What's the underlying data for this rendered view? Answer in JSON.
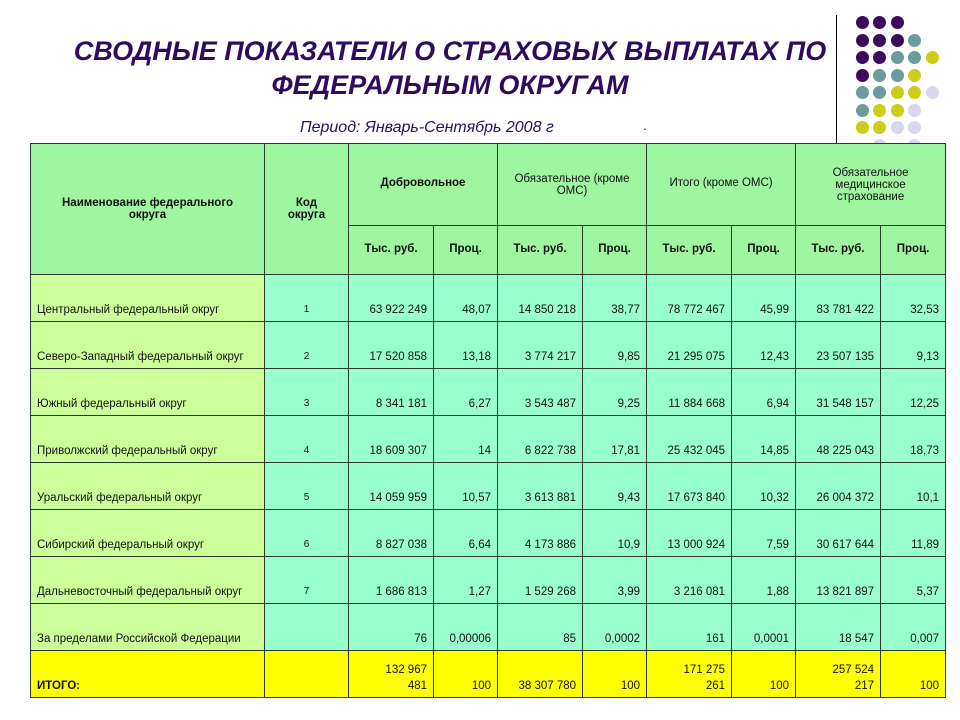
{
  "title": "СВОДНЫЕ ПОКАЗАТЕЛИ О СТРАХОВЫХ ВЫПЛАТАХ ПО ФЕДЕРАЛЬНЫМ ОКРУГАМ",
  "period": "Период: Январь-Сентябрь 2008 г",
  "period_mark": ".",
  "colors": {
    "title": "#2e0b5c",
    "header_bg": "#a0f5a0",
    "name_bg": "#ccff99",
    "cell_bg": "#99ffcc",
    "total_bg": "#ffff00",
    "dots": {
      "purple": "#3d0a5c",
      "teal": "#6a9c9c",
      "olive": "#cccc1a",
      "lavender": "#d8d8ec"
    }
  },
  "table": {
    "headers": {
      "name": "Наименование федерального округа",
      "code": "Код округа",
      "groups": [
        "Добровольное",
        "Обязательное (кроме ОМС)",
        "Итого (кроме ОМС)",
        "Обязательное медицинское страхование"
      ],
      "sub": [
        "Тыс. руб.",
        "Проц.",
        "Тыс. руб.",
        "Проц.",
        "Тыс. руб.",
        "Проц.",
        "Тыс. руб.",
        "Проц."
      ]
    },
    "rows": [
      {
        "name": "Центральный федеральный округ",
        "code": "1",
        "values": [
          "63 922 249",
          "48,07",
          "14 850 218",
          "38,77",
          "78 772 467",
          "45,99",
          "83 781 422",
          "32,53"
        ]
      },
      {
        "name": "Северо-Западный федеральный округ",
        "code": "2",
        "values": [
          "17 520 858",
          "13,18",
          "3 774 217",
          "9,85",
          "21 295 075",
          "12,43",
          "23 507 135",
          "9,13"
        ]
      },
      {
        "name": "Южный федеральный округ",
        "code": "3",
        "values": [
          "8 341 181",
          "6,27",
          "3 543 487",
          "9,25",
          "11 884 668",
          "6,94",
          "31 548 157",
          "12,25"
        ]
      },
      {
        "name": "Приволжский федеральный округ",
        "code": "4",
        "values": [
          "18 609 307",
          "14",
          "6 822 738",
          "17,81",
          "25 432 045",
          "14,85",
          "48 225 043",
          "18,73"
        ]
      },
      {
        "name": "Уральский федеральный округ",
        "code": "5",
        "values": [
          "14 059 959",
          "10,57",
          "3 613 881",
          "9,43",
          "17 673 840",
          "10,32",
          "26 004 372",
          "10,1"
        ]
      },
      {
        "name": "Сибирский федеральный округ",
        "code": "6",
        "values": [
          "8 827 038",
          "6,64",
          "4 173 886",
          "10,9",
          "13 000 924",
          "7,59",
          "30 617 644",
          "11,89"
        ]
      },
      {
        "name": "Дальневосточный федеральный округ",
        "code": "7",
        "values": [
          "1 686 813",
          "1,27",
          "1 529 268",
          "3,99",
          "3 216 081",
          "1,88",
          "13 821 897",
          "5,37"
        ]
      },
      {
        "name": "За пределами Российской Федерации",
        "code": "",
        "values": [
          "76",
          "0,00006",
          "85",
          "0,0002",
          "161",
          "0,0001",
          "18 547",
          "0,007"
        ]
      }
    ],
    "total": {
      "name": "ИТОГО:",
      "code": "",
      "values": [
        "132 967 481",
        "100",
        "38 307 780",
        "100",
        "171 275 261",
        "100",
        "257 524 217",
        "100"
      ]
    }
  }
}
